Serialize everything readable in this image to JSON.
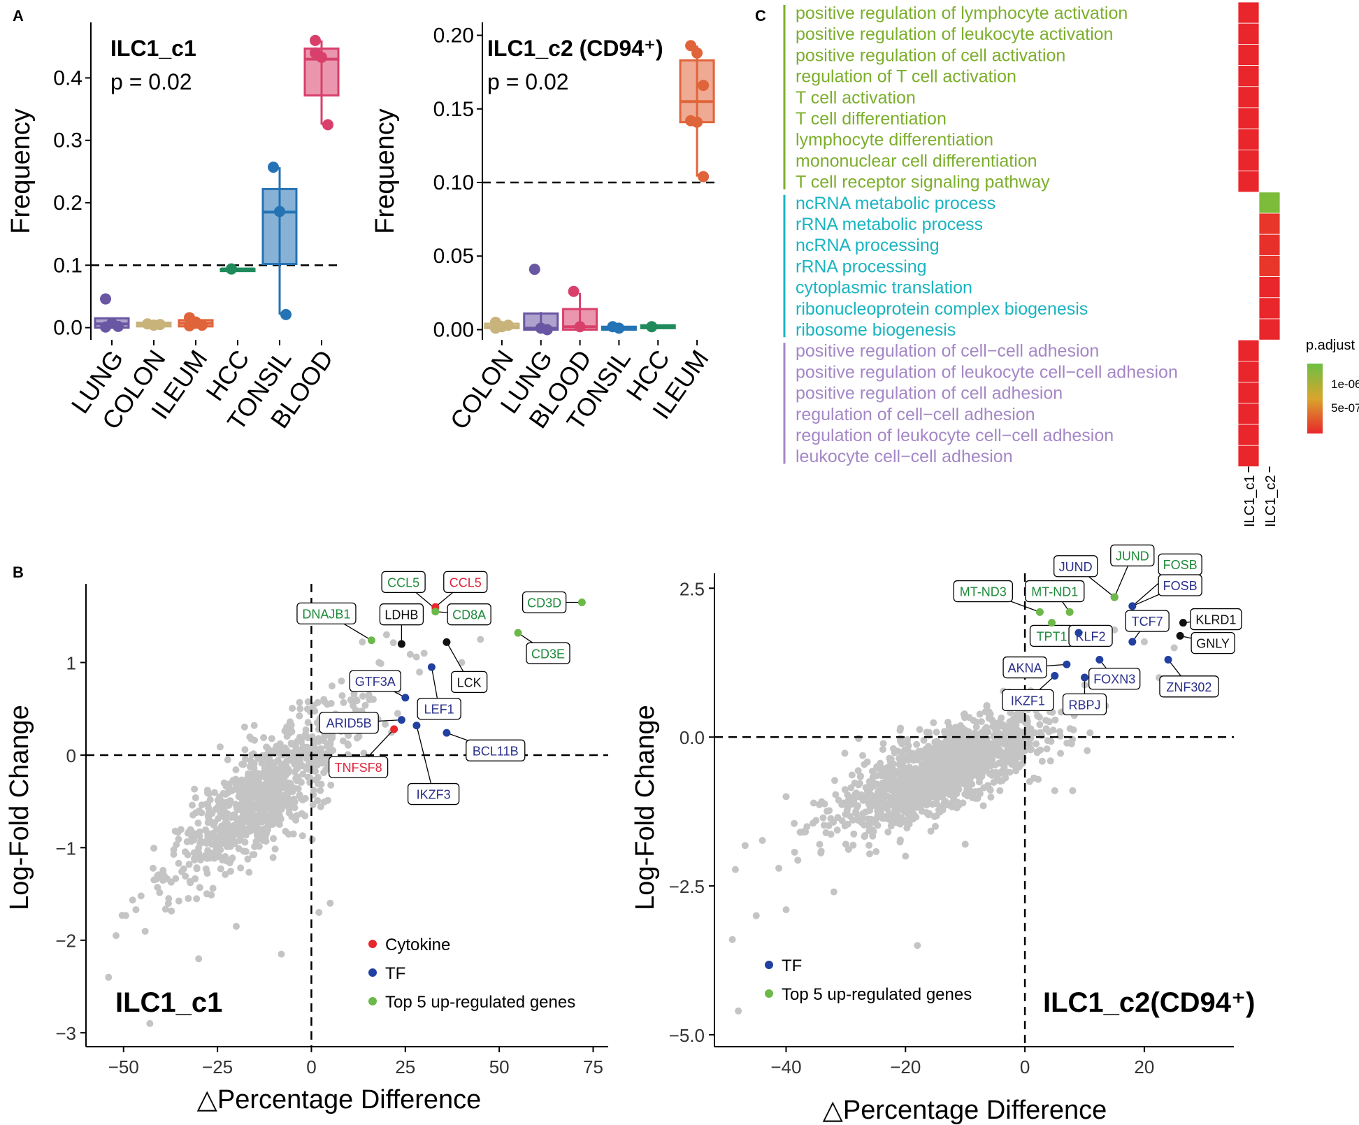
{
  "panel_labels": {
    "a": "A",
    "b": "B",
    "c": "C"
  },
  "colors": {
    "purple": "#6a57a3",
    "tan": "#c8b37a",
    "orange": "#e0643a",
    "green": "#1f8a5b",
    "blue": "#2473b4",
    "pink": "#d8406b",
    "grey": "#c4c4c4",
    "red_point": "#e8262b",
    "navy_point": "#2240a0",
    "green_point": "#6cb84a",
    "black_point": "#111111",
    "go_green": "#7cae2c",
    "go_teal": "#1ab4c0",
    "go_lavender": "#a487c6"
  },
  "chart_data": [
    {
      "id": "A1",
      "type": "box",
      "title": "ILC1_c1",
      "pvalue": "p = 0.02",
      "ylabel": "Frequency",
      "ylim": [
        -0.015,
        0.48
      ],
      "yticks": [
        "0.0",
        "0.1",
        "0.2",
        "0.3",
        "0.4"
      ],
      "ytick_values": [
        0,
        0.1,
        0.2,
        0.3,
        0.4
      ],
      "threshold": 0.1,
      "categories": [
        "LUNG",
        "COLON",
        "ILEUM",
        "HCC",
        "TONSIL",
        "BLOOD"
      ],
      "colors": [
        "#6a57a3",
        "#c8b37a",
        "#e0643a",
        "#1f8a5b",
        "#2473b4",
        "#d8406b"
      ],
      "boxes": [
        {
          "q1": 0.0,
          "median": 0.006,
          "q3": 0.015,
          "min": 0.0,
          "max": 0.015,
          "points": [
            0.046,
            0.007,
            0.002,
            0.001
          ]
        },
        {
          "q1": 0.002,
          "median": 0.005,
          "q3": 0.008,
          "min": 0.001,
          "max": 0.01,
          "points": [
            0.006,
            0.004,
            0.005
          ]
        },
        {
          "q1": 0.002,
          "median": 0.007,
          "q3": 0.012,
          "min": 0.0,
          "max": 0.017,
          "points": [
            0.016,
            0.007,
            0.004,
            0.003,
            0.009
          ]
        },
        {
          "q1": 0.094,
          "median": 0.094,
          "q3": 0.094,
          "min": 0.092,
          "max": 0.096,
          "points": [
            0.094
          ]
        },
        {
          "q1": 0.102,
          "median": 0.185,
          "q3": 0.222,
          "min": 0.021,
          "max": 0.257,
          "points": [
            0.257,
            0.186,
            0.021
          ]
        },
        {
          "q1": 0.372,
          "median": 0.43,
          "q3": 0.447,
          "min": 0.325,
          "max": 0.46,
          "points": [
            0.46,
            0.433,
            0.325,
            0.44
          ]
        }
      ]
    },
    {
      "id": "A2",
      "type": "box",
      "title": "ILC1_c2 (CD94⁺)",
      "pvalue": "p = 0.02",
      "ylabel": "Frequency",
      "ylim": [
        -0.005,
        0.205
      ],
      "yticks": [
        "0.00",
        "0.05",
        "0.10",
        "0.15",
        "0.20"
      ],
      "ytick_values": [
        0,
        0.05,
        0.1,
        0.15,
        0.2
      ],
      "threshold": 0.1,
      "categories": [
        "COLON",
        "LUNG",
        "BLOOD",
        "TONSIL",
        "HCC",
        "ILEUM"
      ],
      "colors": [
        "#c8b37a",
        "#6a57a3",
        "#d8406b",
        "#2473b4",
        "#1f8a5b",
        "#e0643a"
      ],
      "boxes": [
        {
          "q1": 0.001,
          "median": 0.002,
          "q3": 0.004,
          "min": 0.0,
          "max": 0.006,
          "points": [
            0.005,
            0.002,
            0.003,
            0.001
          ]
        },
        {
          "q1": 0.0,
          "median": 0.001,
          "q3": 0.011,
          "min": 0.0,
          "max": 0.012,
          "points": [
            0.041,
            0.001,
            0.0
          ]
        },
        {
          "q1": 0.0,
          "median": 0.002,
          "q3": 0.014,
          "min": 0.0,
          "max": 0.025,
          "points": [
            0.026,
            0.002
          ]
        },
        {
          "q1": 0.0,
          "median": 0.001,
          "q3": 0.002,
          "min": 0.0,
          "max": 0.003,
          "points": [
            0.002,
            0.001
          ]
        },
        {
          "q1": 0.001,
          "median": 0.002,
          "q3": 0.003,
          "min": 0.001,
          "max": 0.003,
          "points": [
            0.002
          ]
        },
        {
          "q1": 0.141,
          "median": 0.155,
          "q3": 0.183,
          "min": 0.104,
          "max": 0.193,
          "points": [
            0.193,
            0.188,
            0.166,
            0.142,
            0.141,
            0.104
          ]
        }
      ]
    },
    {
      "id": "B1",
      "type": "scatter",
      "title": "ILC1_c1",
      "xlabel": "△Percentage Difference",
      "ylabel": "Log-Fold Change",
      "xlim": [
        -60,
        79
      ],
      "ylim": [
        -3.15,
        1.85
      ],
      "xticks": [
        "−50",
        "−25",
        "0",
        "25",
        "50",
        "75"
      ],
      "xtick_values": [
        -50,
        -25,
        0,
        25,
        50,
        75
      ],
      "yticks": [
        "−3",
        "−2",
        "−1",
        "0",
        "1"
      ],
      "ytick_values": [
        -3,
        -2,
        -1,
        0,
        1
      ],
      "legend": [
        {
          "label": "Cytokine",
          "color": "#e8262b"
        },
        {
          "label": "TF",
          "color": "#2240a0"
        },
        {
          "label": "Top 5 up-regulated genes",
          "color": "#6cb84a"
        }
      ],
      "cloud": {
        "seed": 7,
        "n": 900,
        "x_center": -12,
        "x_spread": 14,
        "slope": 0.032,
        "noise": 0.28
      },
      "outliers": [
        [
          -54,
          -2.4
        ],
        [
          -52,
          -1.95
        ],
        [
          -43,
          -2.9
        ],
        [
          -38,
          -1.55
        ],
        [
          -30,
          -2.2
        ],
        [
          -20,
          -1.85
        ],
        [
          -8,
          -2.15
        ],
        [
          5,
          -1.6
        ],
        [
          2,
          -1.7
        ],
        [
          12,
          0.75
        ],
        [
          18,
          1.0
        ],
        [
          30,
          1.1
        ],
        [
          40,
          1.0
        ],
        [
          45,
          1.25
        ],
        [
          -3,
          0.5
        ],
        [
          8,
          0.8
        ],
        [
          20,
          1.3
        ]
      ],
      "highlights": [
        {
          "label": "CCL5",
          "x": 33,
          "y": 1.58,
          "kind": "top5",
          "lx": 24.5,
          "ly": 1.87
        },
        {
          "label": "CCL5",
          "x": 33,
          "y": 1.6,
          "kind": "cytokine",
          "lx": 41,
          "ly": 1.87
        },
        {
          "label": "CD8A",
          "x": 33,
          "y": 1.55,
          "kind": "top5",
          "lx": 42,
          "ly": 1.52
        },
        {
          "label": "CD3D",
          "x": 72,
          "y": 1.65,
          "kind": "top5",
          "lx": 62,
          "ly": 1.65
        },
        {
          "label": "CD3E",
          "x": 55,
          "y": 1.32,
          "kind": "top5",
          "lx": 63,
          "ly": 1.1
        },
        {
          "label": "DNAJB1",
          "x": 16,
          "y": 1.24,
          "kind": "top5",
          "lx": 4,
          "ly": 1.53
        },
        {
          "label": "LDHB",
          "x": 24,
          "y": 1.2,
          "kind": "other",
          "lx": 24,
          "ly": 1.52
        },
        {
          "label": "LCK",
          "x": 36,
          "y": 1.22,
          "kind": "other",
          "lx": 42,
          "ly": 0.79
        },
        {
          "label": "GTF3A",
          "x": 25,
          "y": 0.62,
          "kind": "tf",
          "lx": 17,
          "ly": 0.8
        },
        {
          "label": "LEF1",
          "x": 32,
          "y": 0.95,
          "kind": "tf",
          "lx": 34,
          "ly": 0.5
        },
        {
          "label": "ARID5B",
          "x": 24,
          "y": 0.38,
          "kind": "tf",
          "lx": 10,
          "ly": 0.35
        },
        {
          "label": "TNFSF8",
          "x": 22,
          "y": 0.28,
          "kind": "cytokine",
          "lx": 12.5,
          "ly": -0.13
        },
        {
          "label": "IKZF3",
          "x": 28,
          "y": 0.32,
          "kind": "tf",
          "lx": 32.5,
          "ly": -0.42
        },
        {
          "label": "BCL11B",
          "x": 36,
          "y": 0.24,
          "kind": "tf",
          "lx": 49,
          "ly": 0.05
        }
      ]
    },
    {
      "id": "B2",
      "type": "scatter",
      "title": "ILC1_c2(CD94⁺)",
      "xlabel": "△Percentage Difference",
      "ylabel": "Log-Fold Change",
      "xlim": [
        -52,
        35
      ],
      "ylim": [
        -5.2,
        2.75
      ],
      "xticks": [
        "−40",
        "−20",
        "0",
        "20"
      ],
      "xtick_values": [
        -40,
        -20,
        0,
        20
      ],
      "yticks": [
        "−5.0",
        "−2.5",
        "0.0",
        "2.5"
      ],
      "ytick_values": [
        -5,
        -2.5,
        0,
        2.5
      ],
      "legend": [
        {
          "label": "TF",
          "color": "#2240a0"
        },
        {
          "label": "Top 5 up-regulated genes",
          "color": "#6cb84a"
        }
      ],
      "cloud": {
        "seed": 21,
        "n": 1400,
        "x_center": -14,
        "x_spread": 10,
        "slope": 0.04,
        "noise": 0.33
      },
      "outliers": [
        [
          -49,
          -3.4
        ],
        [
          -48,
          -4.6
        ],
        [
          -45,
          -3.0
        ],
        [
          -40,
          -2.9
        ],
        [
          -32,
          -2.6
        ],
        [
          -30,
          -1.8
        ],
        [
          -20,
          -2.0
        ],
        [
          -18,
          -3.5
        ],
        [
          -15,
          -1.5
        ],
        [
          -10,
          -1.8
        ],
        [
          5,
          -0.9
        ],
        [
          8,
          -0.9
        ],
        [
          -40,
          -1.0
        ],
        [
          -35,
          -1.4
        ],
        [
          15,
          1.8
        ],
        [
          20,
          1.6
        ],
        [
          25,
          1.5
        ]
      ],
      "highlights": [
        {
          "label": "JUND",
          "x": 15,
          "y": 2.35,
          "kind": "tf",
          "lx": 8.5,
          "ly": 2.87
        },
        {
          "label": "JUND",
          "x": 15,
          "y": 2.35,
          "kind": "top5",
          "lx": 18,
          "ly": 3.05
        },
        {
          "label": "FOSB",
          "x": 18,
          "y": 2.2,
          "kind": "top5",
          "lx": 26,
          "ly": 2.9
        },
        {
          "label": "FOSB",
          "x": 18,
          "y": 2.2,
          "kind": "tf",
          "lx": 26,
          "ly": 2.55
        },
        {
          "label": "MT-ND3",
          "x": 2.5,
          "y": 2.1,
          "kind": "top5",
          "lx": -7,
          "ly": 2.45
        },
        {
          "label": "MT-ND1",
          "x": 7.5,
          "y": 2.1,
          "kind": "top5",
          "lx": 5,
          "ly": 2.45
        },
        {
          "label": "TPT1",
          "x": 4.5,
          "y": 1.92,
          "kind": "top5",
          "lx": 4.5,
          "ly": 1.7
        },
        {
          "label": "KLF2",
          "x": 9,
          "y": 1.75,
          "kind": "tf",
          "lx": 11,
          "ly": 1.7
        },
        {
          "label": "TCF7",
          "x": 18,
          "y": 1.6,
          "kind": "tf",
          "lx": 20.5,
          "ly": 1.95
        },
        {
          "label": "KLRD1",
          "x": 26.5,
          "y": 1.92,
          "kind": "other",
          "lx": 32,
          "ly": 1.98
        },
        {
          "label": "GNLY",
          "x": 26,
          "y": 1.7,
          "kind": "other",
          "lx": 31.5,
          "ly": 1.58
        },
        {
          "label": "AKNA",
          "x": 7,
          "y": 1.22,
          "kind": "tf",
          "lx": 0,
          "ly": 1.17
        },
        {
          "label": "FOXN3",
          "x": 12.5,
          "y": 1.3,
          "kind": "tf",
          "lx": 15,
          "ly": 0.98
        },
        {
          "label": "ZNF302",
          "x": 24,
          "y": 1.3,
          "kind": "tf",
          "lx": 27.5,
          "ly": 0.85
        },
        {
          "label": "IKZF1",
          "x": 5,
          "y": 1.03,
          "kind": "tf",
          "lx": 0.5,
          "ly": 0.62
        },
        {
          "label": "RBPJ",
          "x": 10,
          "y": 1.0,
          "kind": "tf",
          "lx": 10,
          "ly": 0.55
        }
      ]
    },
    {
      "id": "C",
      "type": "heatmap",
      "legend_title": "p.adjust",
      "legend_ticks": [
        "1e-06",
        "5e-07"
      ],
      "columns": [
        "ILC1_c1",
        "ILC1_c2"
      ],
      "rows": [
        {
          "term": "positive regulation of lymphocyte activation",
          "group": "green",
          "col": 0,
          "shade": "#e8262b"
        },
        {
          "term": "positive regulation of leukocyte activation",
          "group": "green",
          "col": 0,
          "shade": "#e8262b"
        },
        {
          "term": "positive regulation of cell activation",
          "group": "green",
          "col": 0,
          "shade": "#e8262b"
        },
        {
          "term": "regulation of T cell activation",
          "group": "green",
          "col": 0,
          "shade": "#e8262b"
        },
        {
          "term": "T cell activation",
          "group": "green",
          "col": 0,
          "shade": "#e8262b"
        },
        {
          "term": "T cell differentiation",
          "group": "green",
          "col": 0,
          "shade": "#e8262b"
        },
        {
          "term": "lymphocyte differentiation",
          "group": "green",
          "col": 0,
          "shade": "#e8262b"
        },
        {
          "term": "mononuclear cell differentiation",
          "group": "green",
          "col": 0,
          "shade": "#e8262b"
        },
        {
          "term": "T cell receptor signaling pathway",
          "group": "green",
          "col": 0,
          "shade": "#e8262b"
        },
        {
          "term": "ncRNA metabolic process",
          "group": "teal",
          "col": 1,
          "shade": "#7dbb3a"
        },
        {
          "term": "rRNA metabolic process",
          "group": "teal",
          "col": 1,
          "shade": "#e8362b"
        },
        {
          "term": "ncRNA processing",
          "group": "teal",
          "col": 1,
          "shade": "#e8302b"
        },
        {
          "term": "rRNA processing",
          "group": "teal",
          "col": 1,
          "shade": "#e8362b"
        },
        {
          "term": "cytoplasmic translation",
          "group": "teal",
          "col": 1,
          "shade": "#e8262b"
        },
        {
          "term": "ribonucleoprotein complex biogenesis",
          "group": "teal",
          "col": 1,
          "shade": "#e8262b"
        },
        {
          "term": "ribosome biogenesis",
          "group": "teal",
          "col": 1,
          "shade": "#e8262b"
        },
        {
          "term": "positive regulation of cell−cell adhesion",
          "group": "lavender",
          "col": 0,
          "shade": "#e8262b"
        },
        {
          "term": "positive regulation of leukocyte cell−cell adhesion",
          "group": "lavender",
          "col": 0,
          "shade": "#e8262b"
        },
        {
          "term": "positive regulation of cell adhesion",
          "group": "lavender",
          "col": 0,
          "shade": "#e8262b"
        },
        {
          "term": "regulation of cell−cell adhesion",
          "group": "lavender",
          "col": 0,
          "shade": "#e8262b"
        },
        {
          "term": "regulation of leukocyte cell−cell adhesion",
          "group": "lavender",
          "col": 0,
          "shade": "#e8262b"
        },
        {
          "term": "leukocyte cell−cell adhesion",
          "group": "lavender",
          "col": 0,
          "shade": "#e8262b"
        }
      ]
    }
  ]
}
